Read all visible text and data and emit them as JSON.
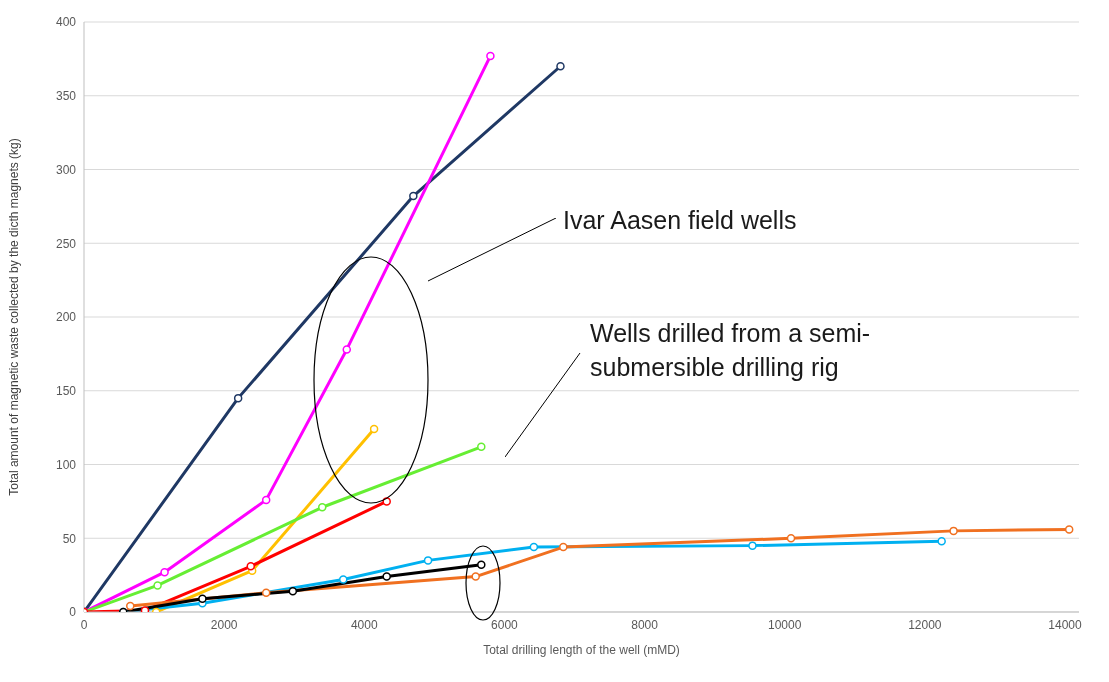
{
  "chart_data": {
    "type": "line",
    "xlabel": "Total drilling length of the well (mMD)",
    "ylabel": "Total amount of magnetic waste collected by the dicth magnets (kg)",
    "xlim": [
      0,
      14200
    ],
    "xticks": [
      0,
      2000,
      4000,
      6000,
      8000,
      10000,
      12000,
      14000
    ],
    "ylim": [
      0,
      400
    ],
    "yticks": [
      0,
      50,
      100,
      150,
      200,
      250,
      300,
      350,
      400
    ],
    "grid": "y",
    "marker": "circle",
    "line_style": "solid",
    "annotations": [
      "Ivar Aasen field wells",
      "Wells drilled from a semi-submersible drilling rig"
    ],
    "series": [
      {
        "color": "#1f3864",
        "x": [
          0,
          2200,
          4700,
          6800
        ],
        "values": [
          0,
          145,
          282,
          370
        ]
      },
      {
        "color": "#ff00ff",
        "x": [
          0,
          1150,
          2600,
          3750,
          5800
        ],
        "values": [
          0,
          27,
          76,
          178,
          377
        ]
      },
      {
        "color": "#ffc000",
        "x": [
          1030,
          2400,
          4140
        ],
        "values": [
          0,
          28,
          124
        ]
      },
      {
        "color": "#66ee33",
        "x": [
          0,
          1050,
          3400,
          5670
        ],
        "values": [
          0,
          18,
          71,
          112
        ]
      },
      {
        "color": "#ff0000",
        "x": [
          0,
          870,
          2380,
          4320
        ],
        "values": [
          0,
          1,
          31,
          75
        ]
      },
      {
        "color": "#00b0f0",
        "x": [
          560,
          1690,
          3700,
          4910,
          6420,
          9540,
          12240
        ],
        "values": [
          0,
          6,
          22,
          35,
          44,
          45,
          48
        ]
      },
      {
        "color": "#f07020",
        "x": [
          660,
          2600,
          5590,
          6840,
          10090,
          12410,
          14060
        ],
        "values": [
          4,
          13,
          24,
          44,
          50,
          55,
          56
        ]
      },
      {
        "color": "#000000",
        "x": [
          560,
          1690,
          2980,
          4320,
          5670
        ],
        "values": [
          0,
          9,
          14,
          24,
          32
        ]
      }
    ]
  }
}
